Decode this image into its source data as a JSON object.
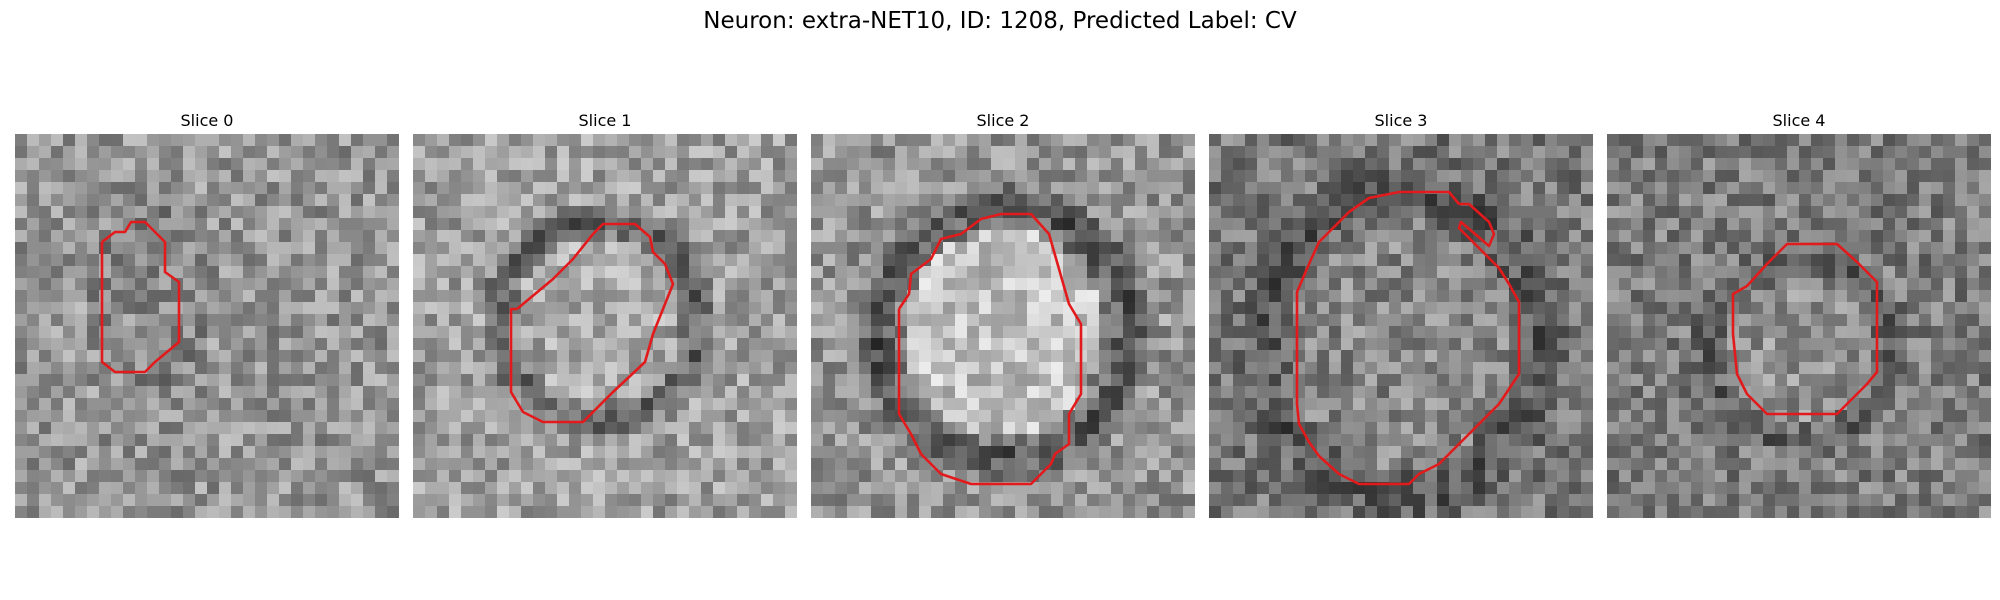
{
  "figure": {
    "title": "Neuron: extra-NET10, ID: 1208, Predicted Label: CV"
  },
  "style": {
    "contour_color": "#e31a1c"
  },
  "panels": [
    {
      "title": "Slice 0"
    },
    {
      "title": "Slice 1"
    },
    {
      "title": "Slice 2"
    },
    {
      "title": "Slice 3"
    },
    {
      "title": "Slice 4"
    }
  ]
}
